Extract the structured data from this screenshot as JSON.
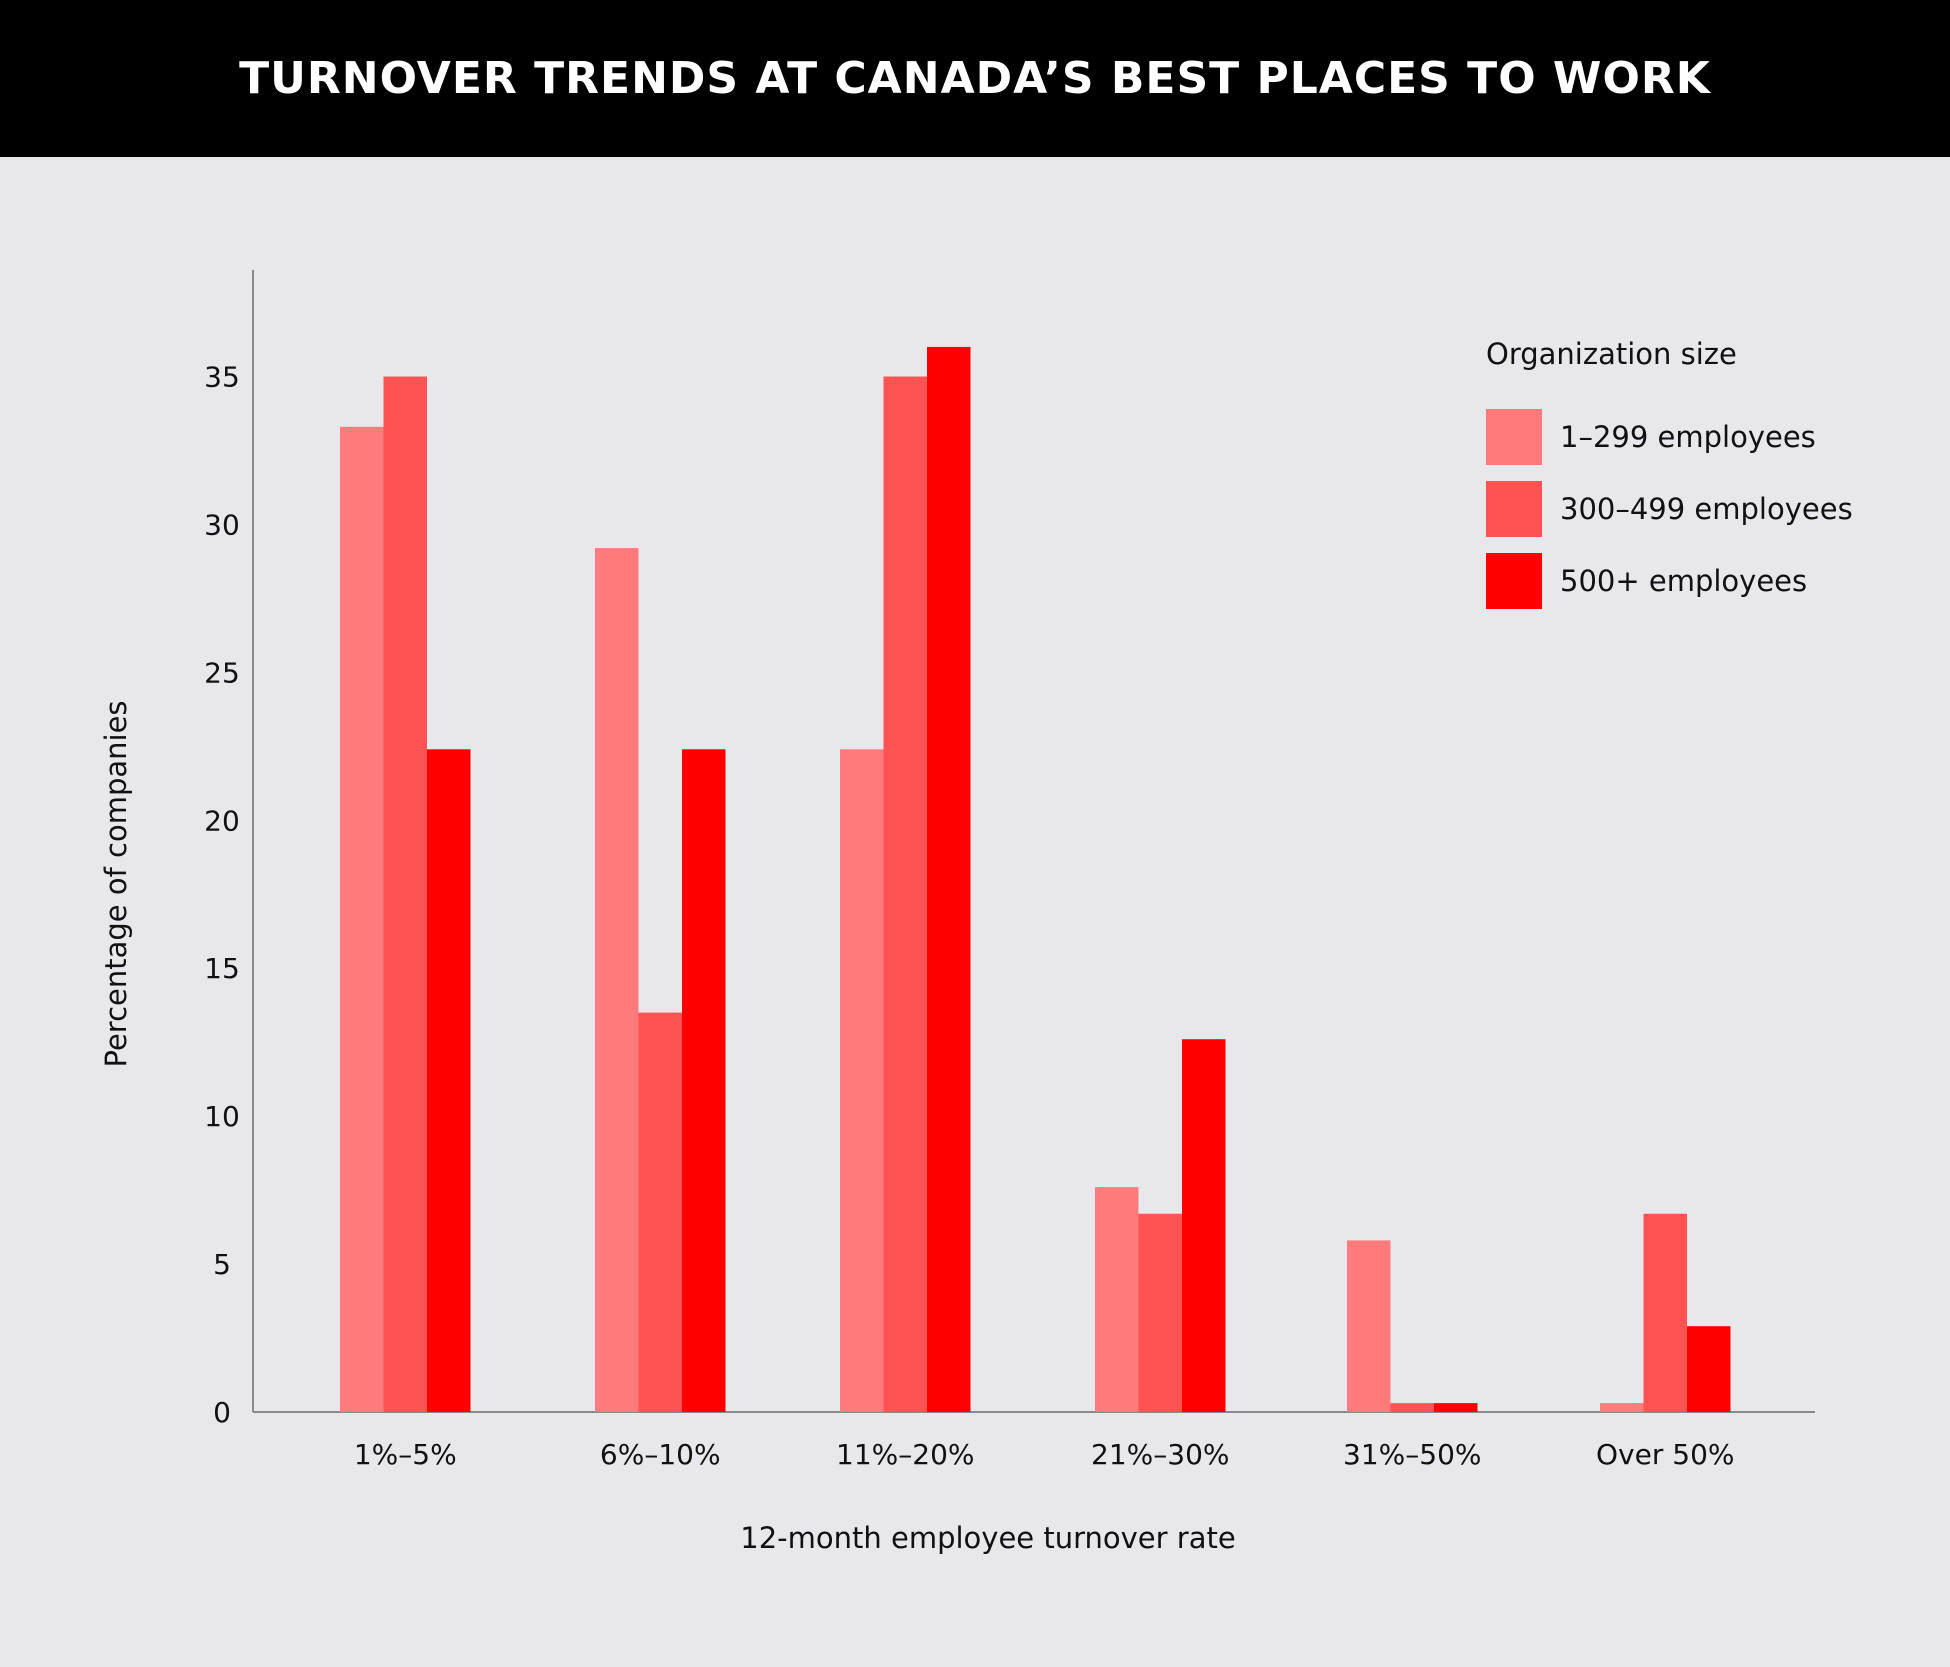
{
  "header": {
    "title": "TURNOVER TRENDS AT CANADA’S BEST PLACES TO WORK"
  },
  "chart_data": {
    "type": "bar",
    "title": "TURNOVER TRENDS AT CANADA’S BEST PLACES TO WORK",
    "xlabel": "12-month employee turnover rate",
    "ylabel": "Percentage of companies",
    "categories": [
      "1%–5%",
      "6%–10%",
      "11%–20%",
      "21%–30%",
      "31%–50%",
      "Over 50%"
    ],
    "series": [
      {
        "name": "1–299 employees",
        "color": "#ff7b7b",
        "values": [
          33.3,
          29.2,
          22.4,
          7.6,
          5.8,
          0.3
        ]
      },
      {
        "name": "300–499 employees",
        "color": "#ff5252",
        "values": [
          35.0,
          13.5,
          35.0,
          6.7,
          0.3,
          6.7
        ]
      },
      {
        "name": "500+ employees",
        "color": "#ff0000",
        "values": [
          22.4,
          22.4,
          36.0,
          12.6,
          0.3,
          2.9
        ]
      }
    ],
    "yticks": [
      0,
      5,
      10,
      15,
      20,
      25,
      30,
      35
    ],
    "ylim": [
      0,
      38.6
    ],
    "grid": false,
    "legend": {
      "title": "Organization size",
      "position": "top-right"
    }
  }
}
